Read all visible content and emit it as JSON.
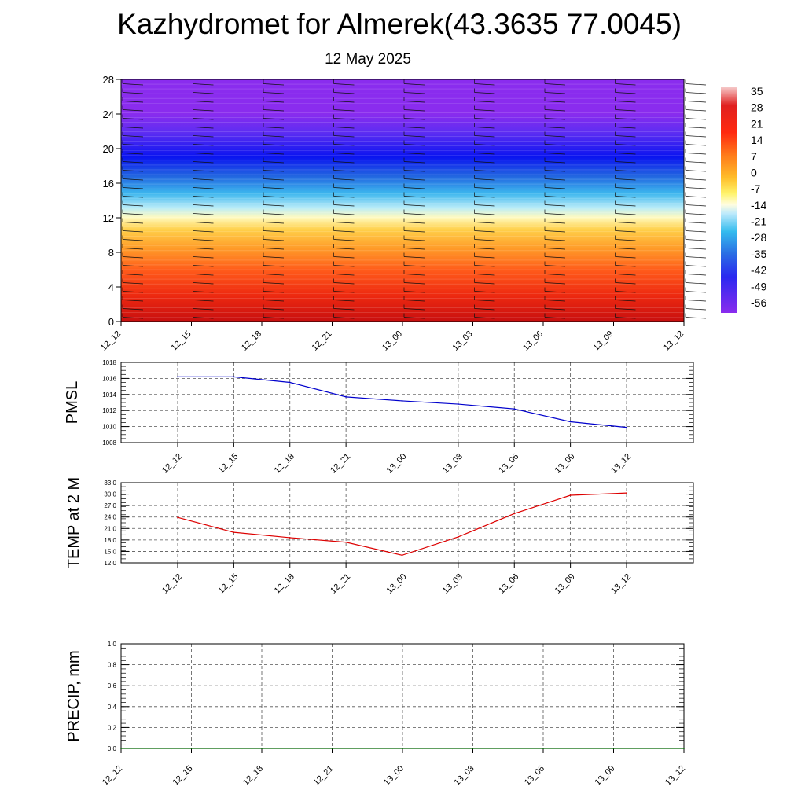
{
  "title": "Kazhydromet for Almerek(43.3635 77.0045)",
  "subtitle": "12 May 2025",
  "colors": {
    "pmsl_line": "#0000cc",
    "temp_line": "#dd0000",
    "precip_line": "#006600",
    "grid": "#555555"
  },
  "chart_data": [
    {
      "type": "heatmap",
      "title": "",
      "xlabel": "",
      "ylabel": "",
      "x": [
        "12_12",
        "12_15",
        "12_18",
        "12_21",
        "13_00",
        "13_03",
        "13_06",
        "13_09",
        "13_12"
      ],
      "y_ticks": [
        0,
        4,
        8,
        12,
        16,
        20,
        24,
        28
      ],
      "ylim": [
        0,
        28
      ],
      "colorbar_labels": [
        "35",
        "28",
        "21",
        "14",
        "7",
        "0",
        "-7",
        "-14",
        "-21",
        "-28",
        "-35",
        "-42",
        "-49",
        "-56"
      ],
      "colorbar_range": [
        -63,
        42
      ],
      "approx_temperature_by_level": [
        {
          "y": 0,
          "value": 28
        },
        {
          "y": 4,
          "value": 24
        },
        {
          "y": 8,
          "value": 14
        },
        {
          "y": 12,
          "value": -7
        },
        {
          "y": 16,
          "value": -28
        },
        {
          "y": 20,
          "value": -56
        },
        {
          "y": 24,
          "value": -63
        },
        {
          "y": 28,
          "value": -63
        }
      ],
      "overlay": "wind barbs"
    },
    {
      "type": "line",
      "ylabel": "PMSL",
      "ylim": [
        1008,
        1018
      ],
      "y_ticks": [
        "1008",
        "1010",
        "1012",
        "1014",
        "1016",
        "1018"
      ],
      "categories": [
        "12_12",
        "12_15",
        "12_18",
        "12_21",
        "13_00",
        "13_03",
        "13_06",
        "13_09",
        "13_12"
      ],
      "values": [
        1016.2,
        1016.2,
        1015.5,
        1013.7,
        1013.2,
        1012.8,
        1012.2,
        1010.6,
        1009.9
      ],
      "grid": true
    },
    {
      "type": "line",
      "ylabel": "TEMP at 2 M",
      "ylim": [
        12,
        33
      ],
      "y_ticks": [
        "12.0",
        "15.0",
        "18.0",
        "21.0",
        "24.0",
        "27.0",
        "30.0",
        "33.0"
      ],
      "categories": [
        "12_12",
        "12_15",
        "12_18",
        "12_21",
        "13_00",
        "13_03",
        "13_06",
        "13_09",
        "13_12"
      ],
      "values": [
        23.9,
        20.0,
        18.6,
        17.4,
        14.0,
        18.8,
        24.9,
        29.7,
        30.3
      ],
      "grid": true
    },
    {
      "type": "line",
      "ylabel": "PRECIP, mm",
      "ylim": [
        0,
        1
      ],
      "y_ticks": [
        "0.0",
        "0.2",
        "0.4",
        "0.6",
        "0.8",
        "1.0"
      ],
      "categories": [
        "12_12",
        "12_15",
        "12_18",
        "12_21",
        "13_00",
        "13_03",
        "13_06",
        "13_09",
        "13_12"
      ],
      "values": [
        0,
        0,
        0,
        0,
        0,
        0,
        0,
        0,
        0
      ],
      "grid": true
    }
  ]
}
